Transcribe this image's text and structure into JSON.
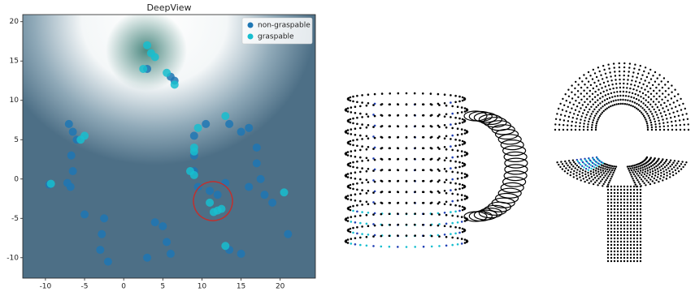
{
  "chart_data": {
    "type": "scatter",
    "title": "DeepView",
    "xlim": [
      -12.9,
      24.5
    ],
    "ylim": [
      -12.6,
      20.9
    ],
    "xticks": [
      -10,
      -5,
      0,
      5,
      10,
      15,
      20
    ],
    "yticks": [
      -10,
      -5,
      0,
      5,
      10,
      15,
      20
    ],
    "legend": "upper right",
    "series": [
      {
        "name": "non-graspable",
        "color": "#1f77b4",
        "x": [
          -6.5,
          -6,
          -7,
          -6.7,
          -6.5,
          -6.8,
          -7.2,
          -5,
          -9.5,
          -2.5,
          -2.8,
          -3,
          -2,
          9,
          9,
          9,
          9.5,
          11,
          12,
          13,
          13.5,
          15,
          16,
          17,
          17,
          17.5,
          16,
          18,
          19,
          15,
          13.5,
          5,
          5.5,
          6,
          3,
          4,
          21,
          3,
          6,
          6.5,
          10.5
        ],
        "y": [
          6,
          5,
          7,
          3,
          1,
          -1,
          -0.5,
          -4.5,
          -0.7,
          -5,
          -7,
          -9,
          -10.5,
          5.5,
          3,
          1,
          -1,
          -1.5,
          -2,
          -0.5,
          7,
          6,
          6.5,
          4,
          2,
          0,
          -1,
          -2,
          -3,
          -9.5,
          -9,
          -6,
          -8,
          -9.5,
          -10,
          -5.5,
          -7,
          14,
          13,
          12.5,
          7
        ]
      },
      {
        "name": "graspable",
        "color": "#17becf",
        "x": [
          3,
          3.5,
          4,
          2.5,
          5.5,
          6.5,
          -9.3,
          -5,
          -5.5,
          9,
          9,
          9.5,
          9,
          11,
          12,
          11.5,
          12.5,
          13,
          13,
          20.5,
          8.5
        ],
        "y": [
          17,
          16,
          15.5,
          14,
          13.5,
          12,
          -0.6,
          5.5,
          5,
          4,
          3.5,
          6.5,
          0.5,
          -3,
          -4,
          -4.2,
          -3.8,
          8,
          -8.5,
          -1.7,
          1
        ]
      }
    ]
  }
}
